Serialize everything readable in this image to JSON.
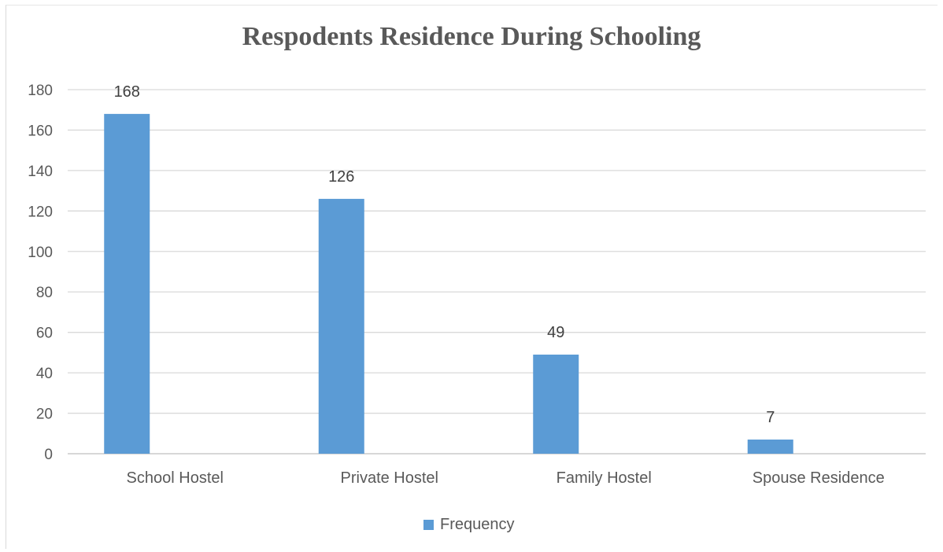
{
  "chart_data": {
    "type": "bar",
    "title": "Respodents Residence During Schooling",
    "categories": [
      "School Hostel",
      "Private Hostel",
      "Family Hostel",
      "Spouse Residence"
    ],
    "series": [
      {
        "name": "Frequency",
        "values": [
          168,
          126,
          49,
          7
        ]
      }
    ],
    "data_labels": [
      "168",
      "126",
      "49",
      "7"
    ],
    "yticks": [
      "0",
      "20",
      "40",
      "60",
      "80",
      "100",
      "120",
      "140",
      "160",
      "180"
    ],
    "ylim": [
      0,
      180
    ],
    "grid": true,
    "legend_position": "bottom",
    "color": "#5b9bd5"
  }
}
